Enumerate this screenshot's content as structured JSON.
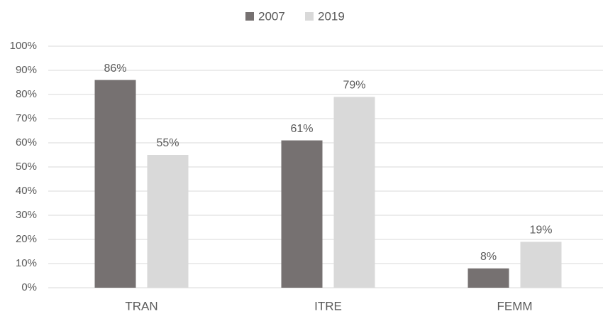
{
  "chart_data": {
    "type": "bar",
    "categories": [
      "TRAN",
      "ITRE",
      "FEMM"
    ],
    "series": [
      {
        "name": "2007",
        "color": "#767171",
        "values": [
          86,
          61,
          8
        ],
        "value_labels": [
          "86%",
          "61%",
          "8%"
        ]
      },
      {
        "name": "2019",
        "color": "#d9d9d9",
        "values": [
          55,
          79,
          19
        ],
        "value_labels": [
          "55%",
          "79%",
          "19%"
        ]
      }
    ],
    "ylim": [
      0,
      100
    ],
    "yticks": [
      {
        "value": 0,
        "label": "0%"
      },
      {
        "value": 10,
        "label": "10%"
      },
      {
        "value": 20,
        "label": "20%"
      },
      {
        "value": 30,
        "label": "30%"
      },
      {
        "value": 40,
        "label": "40%"
      },
      {
        "value": 50,
        "label": "50%"
      },
      {
        "value": 60,
        "label": "60%"
      },
      {
        "value": 70,
        "label": "70%"
      },
      {
        "value": 80,
        "label": "80%"
      },
      {
        "value": 90,
        "label": "90%"
      },
      {
        "value": 100,
        "label": "100%"
      }
    ],
    "grid": true,
    "legend": "top"
  }
}
